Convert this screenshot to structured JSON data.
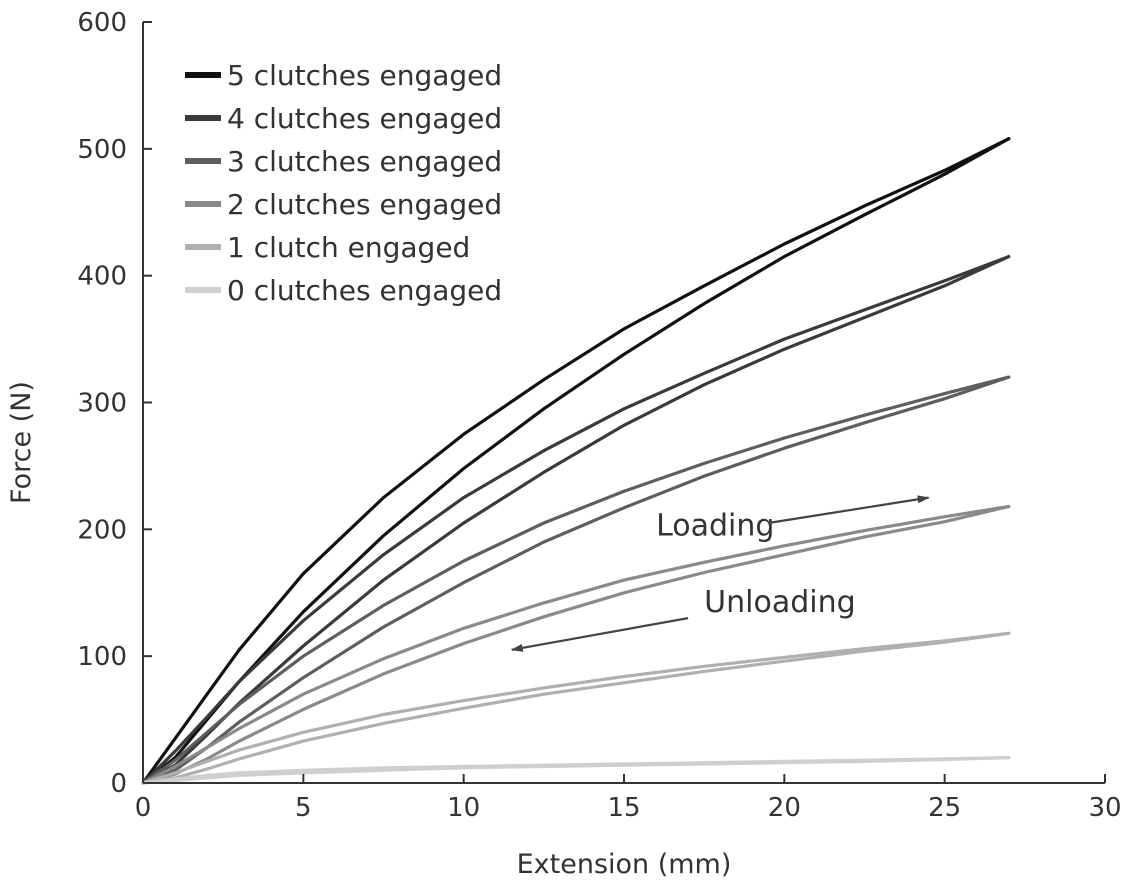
{
  "chart_data": {
    "type": "line",
    "title": "",
    "xlabel": "Extension (mm)",
    "ylabel": "Force (N)",
    "xlim": [
      0,
      30
    ],
    "ylim": [
      0,
      600
    ],
    "xticks": [
      0,
      5,
      10,
      15,
      20,
      25,
      30
    ],
    "yticks": [
      0,
      100,
      200,
      300,
      400,
      500,
      600
    ],
    "grid": false,
    "legend_position": "top-left",
    "colors": {
      "5": "#111111",
      "4": "#3a3a3a",
      "3": "#5e5e5e",
      "2": "#8a8a8a",
      "1": "#b0b0b0",
      "0": "#cfcfcf"
    },
    "series": [
      {
        "name": "5 clutches engaged",
        "loading": {
          "x": [
            0,
            1,
            2,
            3,
            5,
            7.5,
            10,
            12.5,
            15,
            17.5,
            20,
            22.5,
            25,
            27
          ],
          "y": [
            0,
            35,
            70,
            105,
            165,
            225,
            275,
            318,
            358,
            392,
            425,
            455,
            483,
            508
          ]
        },
        "unloading": {
          "x": [
            0,
            1,
            2,
            3,
            5,
            7.5,
            10,
            12.5,
            15,
            17.5,
            20,
            22.5,
            25,
            27
          ],
          "y": [
            0,
            20,
            50,
            80,
            135,
            195,
            248,
            295,
            338,
            378,
            415,
            448,
            480,
            508
          ]
        }
      },
      {
        "name": "4 clutches engaged",
        "loading": {
          "x": [
            0,
            1,
            2,
            3,
            5,
            7.5,
            10,
            12.5,
            15,
            17.5,
            20,
            22.5,
            25,
            27
          ],
          "y": [
            0,
            25,
            52,
            80,
            128,
            180,
            225,
            262,
            295,
            323,
            350,
            373,
            396,
            415
          ]
        },
        "unloading": {
          "x": [
            0,
            1,
            2,
            3,
            5,
            7.5,
            10,
            12.5,
            15,
            17.5,
            20,
            22.5,
            25,
            27
          ],
          "y": [
            0,
            14,
            38,
            63,
            108,
            160,
            205,
            245,
            282,
            314,
            342,
            367,
            392,
            415
          ]
        }
      },
      {
        "name": "3 clutches engaged",
        "loading": {
          "x": [
            0,
            1,
            2,
            3,
            5,
            7.5,
            10,
            12.5,
            15,
            17.5,
            20,
            22.5,
            25,
            27
          ],
          "y": [
            0,
            18,
            40,
            62,
            100,
            140,
            175,
            205,
            230,
            252,
            272,
            290,
            307,
            320
          ]
        },
        "unloading": {
          "x": [
            0,
            1,
            2,
            3,
            5,
            7.5,
            10,
            12.5,
            15,
            17.5,
            20,
            22.5,
            25,
            27
          ],
          "y": [
            0,
            10,
            28,
            48,
            83,
            123,
            158,
            190,
            217,
            242,
            264,
            284,
            303,
            320
          ]
        }
      },
      {
        "name": "2 clutches engaged",
        "loading": {
          "x": [
            0,
            1,
            2,
            3,
            5,
            7.5,
            10,
            12.5,
            15,
            17.5,
            20,
            22.5,
            25,
            27
          ],
          "y": [
            0,
            13,
            28,
            43,
            70,
            98,
            122,
            142,
            160,
            174,
            187,
            199,
            210,
            218
          ]
        },
        "unloading": {
          "x": [
            0,
            1,
            2,
            3,
            5,
            7.5,
            10,
            12.5,
            15,
            17.5,
            20,
            22.5,
            25,
            27
          ],
          "y": [
            0,
            7,
            19,
            33,
            58,
            86,
            110,
            131,
            150,
            166,
            180,
            194,
            206,
            218
          ]
        }
      },
      {
        "name": "1 clutch engaged",
        "loading": {
          "x": [
            0,
            1,
            2,
            3,
            5,
            7.5,
            10,
            12.5,
            15,
            17.5,
            20,
            22.5,
            25,
            27
          ],
          "y": [
            0,
            8,
            17,
            26,
            40,
            54,
            65,
            75,
            84,
            92,
            99,
            106,
            112,
            118
          ]
        },
        "unloading": {
          "x": [
            0,
            1,
            2,
            3,
            5,
            7.5,
            10,
            12.5,
            15,
            17.5,
            20,
            22.5,
            25,
            27
          ],
          "y": [
            0,
            4,
            11,
            19,
            33,
            47,
            59,
            70,
            79,
            88,
            96,
            104,
            111,
            118
          ]
        }
      },
      {
        "name": "0 clutches engaged",
        "loading": {
          "x": [
            0,
            1,
            2,
            3,
            5,
            7.5,
            10,
            12.5,
            15,
            17.5,
            20,
            22.5,
            25,
            27
          ],
          "y": [
            0,
            3,
            6,
            8,
            10,
            12,
            13,
            14,
            15,
            16,
            17,
            18,
            19,
            20
          ]
        },
        "unloading": {
          "x": [
            0,
            1,
            2,
            3,
            5,
            7.5,
            10,
            12.5,
            15,
            17.5,
            20,
            22.5,
            25,
            27
          ],
          "y": [
            0,
            2,
            4,
            6,
            8,
            10,
            12,
            13,
            14,
            15,
            16,
            17,
            18.5,
            20
          ]
        }
      }
    ],
    "annotations": [
      {
        "text": "Loading",
        "text_at": [
          16,
          195
        ],
        "arrow_from": [
          19.5,
          205
        ],
        "arrow_to": [
          24.5,
          225
        ]
      },
      {
        "text": "Unloading",
        "text_at": [
          17.5,
          135
        ],
        "arrow_from": [
          17,
          130
        ],
        "arrow_to": [
          11.5,
          105
        ]
      }
    ]
  }
}
